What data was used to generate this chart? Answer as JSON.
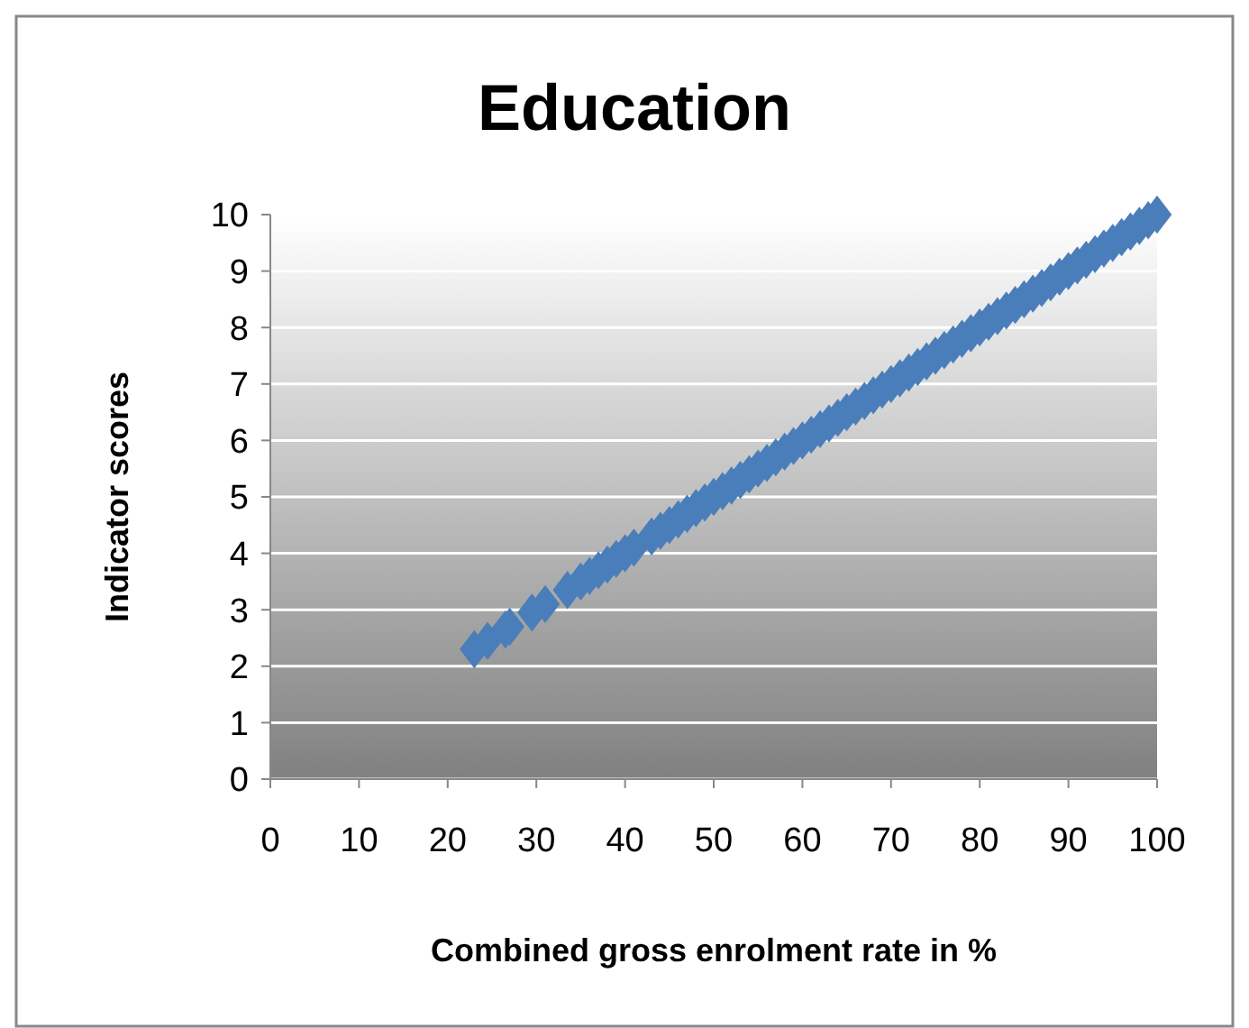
{
  "chart_data": {
    "type": "scatter",
    "title": "Education",
    "xlabel": "Combined gross enrolment rate in %",
    "ylabel": "Indicator scores",
    "x": [
      23,
      24.5,
      26.5,
      27,
      29.5,
      31,
      33.5,
      35,
      36,
      37,
      38,
      39,
      40,
      41,
      43,
      44,
      45,
      46,
      47,
      48,
      49,
      50,
      51,
      52,
      53,
      54,
      55,
      56,
      57,
      58,
      59,
      60,
      61,
      62,
      63,
      64,
      65,
      66,
      67,
      68,
      69,
      70,
      71,
      72,
      73,
      74,
      75,
      76,
      77,
      78,
      79,
      80,
      81,
      82,
      83,
      84,
      85,
      86,
      87,
      88,
      89,
      90,
      91,
      92,
      93,
      94,
      95,
      96,
      97,
      98,
      99,
      100
    ],
    "series": [
      {
        "color": "#4a7ebb",
        "values": [
          2.3,
          2.45,
          2.65,
          2.7,
          2.95,
          3.1,
          3.35,
          3.5,
          3.6,
          3.7,
          3.8,
          3.9,
          4,
          4.1,
          4.3,
          4.4,
          4.5,
          4.6,
          4.7,
          4.8,
          4.9,
          5,
          5.1,
          5.2,
          5.3,
          5.4,
          5.5,
          5.6,
          5.7,
          5.8,
          5.9,
          6,
          6.1,
          6.2,
          6.3,
          6.4,
          6.5,
          6.6,
          6.7,
          6.8,
          6.9,
          7,
          7.1,
          7.2,
          7.3,
          7.4,
          7.5,
          7.6,
          7.7,
          7.8,
          7.9,
          8,
          8.1,
          8.2,
          8.3,
          8.4,
          8.5,
          8.6,
          8.7,
          8.8,
          8.9,
          9,
          9.1,
          9.2,
          9.3,
          9.4,
          9.5,
          9.6,
          9.7,
          9.8,
          9.9,
          10
        ]
      }
    ],
    "xlim": [
      0,
      100
    ],
    "xticks": [
      0,
      10,
      20,
      30,
      40,
      50,
      60,
      70,
      80,
      90,
      100
    ],
    "ylim": [
      0,
      10
    ],
    "yticks": [
      0,
      1,
      2,
      3,
      4,
      5,
      6,
      7,
      8,
      9,
      10
    ],
    "grid": "y",
    "marker": "diamond"
  }
}
